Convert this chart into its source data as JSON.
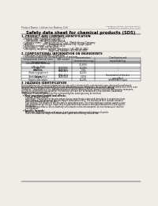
{
  "background_color": "#f0ede8",
  "header_left": "Product Name: Lithium Ion Battery Cell",
  "header_right_line1": "Substance number: SDS-049-008-10",
  "header_right_line2": "Established / Revision: Dec.7,2010",
  "title": "Safety data sheet for chemical products (SDS)",
  "section1_title": "1. PRODUCT AND COMPANY IDENTIFICATION",
  "section1_lines": [
    "  • Product name: Lithium Ion Battery Cell",
    "  • Product code: Cylindrical type cell",
    "       SNY18650U, SNY18650G, SNY18650A",
    "  • Company name:    Sanyo Electric Co., Ltd.  Mobile Energy Company",
    "  • Address:             2001  Kamiyashiro, Sumoto-City, Hyogo, Japan",
    "  • Telephone number:   +81-799-26-4111",
    "  • Fax number:   +81-799-26-4121",
    "  • Emergency telephone number (Weekdays) +81-799-26-3662",
    "                                       (Night and holiday) +81-799-26-4101"
  ],
  "section2_title": "2. COMPOSITIONAL INFORMATION ON INGREDIENTS",
  "section2_subtitle": "  • Substance or preparation: Preparation",
  "section2_sub2": "  • Information about the chemical nature of product:",
  "table_headers": [
    "Compositional chemical name",
    "CAS number",
    "Concentration /\nConcentration range",
    "Classification and\nhazard labeling"
  ],
  "table_rows": [
    [
      "Lithium cobalt tantalate\n(LiMn-Co-PO4)",
      "-",
      "(30-60%)",
      "-"
    ],
    [
      "Iron",
      "7439-89-6",
      "15-25%",
      "-"
    ],
    [
      "Aluminum",
      "7429-90-5",
      "2-5%",
      "-"
    ],
    [
      "Graphite\n(Flake or graphite+)\n(Artificial graphite)",
      "7782-42-5\n7782-42-5",
      "10-20%",
      "-"
    ],
    [
      "Copper",
      "7440-50-8",
      "5-15%",
      "Sensitization of the skin\ngroup No.2"
    ],
    [
      "Organic electrolyte",
      "-",
      "10-20%",
      "Inflammable liquid"
    ]
  ],
  "section3_title": "3. HAZARDS IDENTIFICATION",
  "section3_para": [
    "For the battery cell, chemical substances are stored in a hermetically sealed metal case, designed to withstand",
    "temperature changes, pressure-force-shocks-vibrations during normal use. As a result, during normal use, there is no",
    "physical danger of ignition or explosion and thermical danger of hazardous materials leakage.",
    "  However, if exposed to a fire, added mechanical shocks, decompressor, when electrolyte without any measures,",
    "the gas residue cannot be operated. The battery cell case will be breached of the extreme, hazardous",
    "materials may be released.",
    "  Moreover, if heated strongly by the surrounding fire, some gas may be emitted."
  ],
  "section3_bullet1": "  • Most important hazard and effects:",
  "section3_human": "    Human health effects:",
  "section3_human_lines": [
    "       Inhalation: The release of the electrolyte has an anesthesia action and stimulates in respiratory tract.",
    "       Skin contact: The release of the electrolyte stimulates a skin. The electrolyte skin contact causes a",
    "       sore and stimulation on the skin.",
    "       Eye contact: The release of the electrolyte stimulates eyes. The electrolyte eye contact causes a sore",
    "       and stimulation on the eye. Especially, a substance that causes a strong inflammation of the eyes is",
    "       contained.",
    "       Environmental effects: Since a battery cell remains in the environment, do not throw out it into the",
    "       environment."
  ],
  "section3_specific": "  • Specific hazards:",
  "section3_specific_lines": [
    "       If the electrolyte contacts with water, it will generate detrimental hydrogen fluoride.",
    "       Since the used electrolyte is inflammable liquid, do not bring close to fire."
  ],
  "footer_line": true
}
